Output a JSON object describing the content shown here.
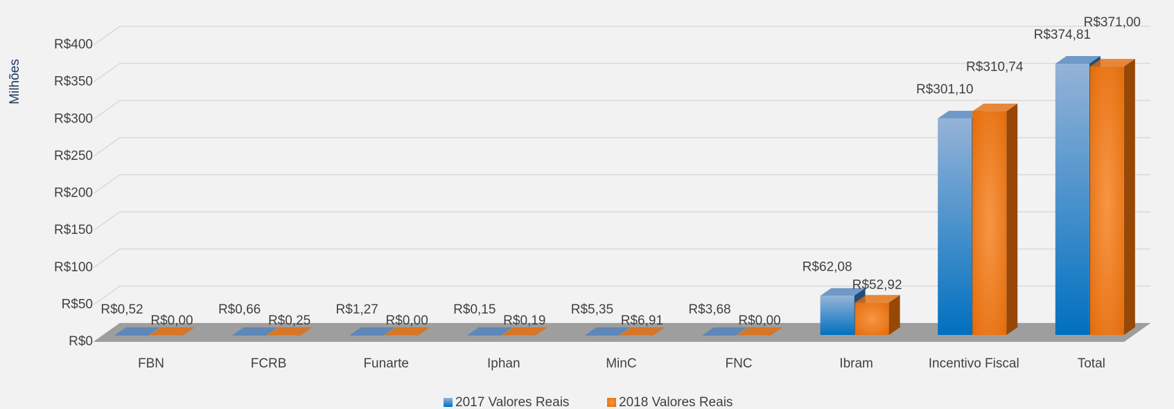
{
  "chart_data": {
    "type": "bar3d",
    "y_axis_label": "Milhões",
    "categories": [
      "FBN",
      "FCRB",
      "Funarte",
      "Iphan",
      "MinC",
      "FNC",
      "Ibram",
      "Incentivo Fiscal",
      "Total"
    ],
    "series": [
      {
        "name": "2017 Valores Reais",
        "color": "#4f81bd",
        "values": [
          0.52,
          0.66,
          1.27,
          0.15,
          5.35,
          3.68,
          62.08,
          301.1,
          374.81
        ],
        "value_labels": [
          "R$0,52",
          "R$0,66",
          "R$1,27",
          "R$0,15",
          "R$5,35",
          "R$3,68",
          "R$62,08",
          "R$301,10",
          "R$374,81"
        ]
      },
      {
        "name": "2018 Valores Reais",
        "color": "#e46c0a",
        "values": [
          0.0,
          0.25,
          0.0,
          0.19,
          6.91,
          0.0,
          52.92,
          310.74,
          371.0
        ],
        "value_labels": [
          "R$0,00",
          "R$0,25",
          "R$0,00",
          "R$0,19",
          "R$6,91",
          "R$0,00",
          "R$52,92",
          "R$310,74",
          "R$371,00"
        ]
      }
    ],
    "ylim": [
      0,
      400
    ],
    "yticks": [
      {
        "value": 0,
        "label": "R$0"
      },
      {
        "value": 50,
        "label": "R$50"
      },
      {
        "value": 100,
        "label": "R$100"
      },
      {
        "value": 150,
        "label": "R$150"
      },
      {
        "value": 200,
        "label": "R$200"
      },
      {
        "value": 250,
        "label": "R$250"
      },
      {
        "value": 300,
        "label": "R$300"
      },
      {
        "value": 350,
        "label": "R$350"
      },
      {
        "value": 400,
        "label": "R$400"
      }
    ],
    "grid": true
  }
}
